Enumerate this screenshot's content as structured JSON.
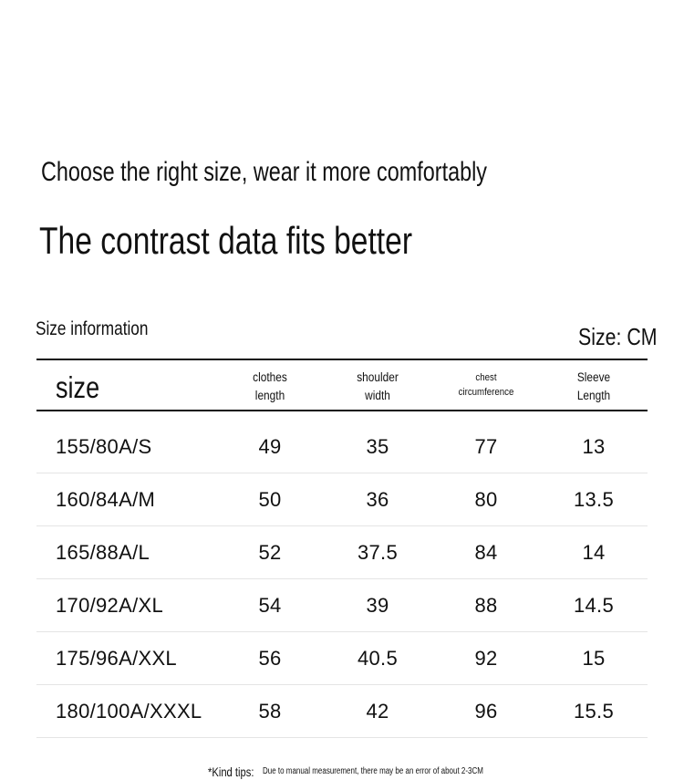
{
  "subtitle": "Choose the right size, wear it more comfortably",
  "headline": "The contrast data fits better",
  "table_section": {
    "title": "Size information",
    "unit": "Size: CM"
  },
  "table": {
    "columns": [
      {
        "line1": "size",
        "line2": ""
      },
      {
        "line1": "clothes",
        "line2": "length"
      },
      {
        "line1": "shoulder",
        "line2": "width"
      },
      {
        "line1": "chest",
        "line2": "circumference"
      },
      {
        "line1": "Sleeve",
        "line2": "Length"
      }
    ],
    "rows": [
      [
        "155/80A/S",
        "49",
        "35",
        "77",
        "13"
      ],
      [
        "160/84A/M",
        "50",
        "36",
        "80",
        "13.5"
      ],
      [
        "165/88A/L",
        "52",
        "37.5",
        "84",
        "14"
      ],
      [
        "170/92A/XL",
        "54",
        "39",
        "88",
        "14.5"
      ],
      [
        "175/96A/XXL",
        "56",
        "40.5",
        "92",
        "15"
      ],
      [
        "180/100A/XXXL",
        "58",
        "42",
        "96",
        "15.5"
      ]
    ]
  },
  "tips": {
    "label": "*Kind tips:",
    "text": "Due to manual measurement, there may be an error of about 2-3CM"
  }
}
